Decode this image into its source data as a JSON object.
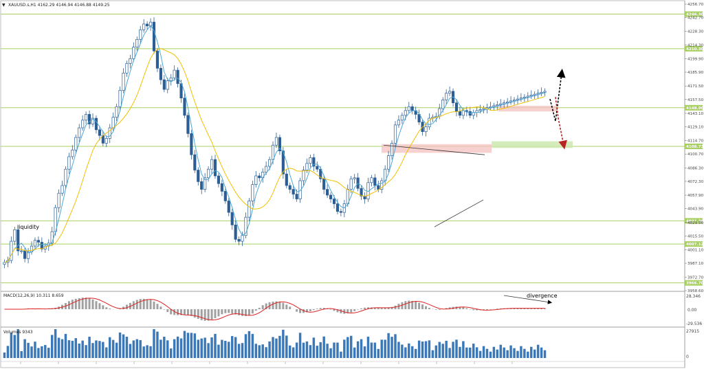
{
  "chart_data": {
    "type": "candlestick",
    "symbol_header": "XAUUSD.s,H1  4162.29 4146.94 4146.88 4149.25",
    "price_axis": {
      "ylim": [
        3958.6,
        4256.7
      ],
      "ticks": [
        "4256.70",
        "4242.70",
        "4228.30",
        "4214.30",
        "4199.90",
        "4185.90",
        "4171.50",
        "4157.50",
        "4143.10",
        "4129.10",
        "4114.70",
        "4100.70",
        "4086.30",
        "4072.30",
        "4057.90",
        "4043.90",
        "4029.50",
        "4015.50",
        "4001.10",
        "3987.10",
        "3972.70",
        "3958.60"
      ]
    },
    "levels": [
      {
        "value": 4246.3,
        "label": "4246.30"
      },
      {
        "value": 4210.3,
        "label": "4210.30"
      },
      {
        "value": 4148.9,
        "label": "4148.90"
      },
      {
        "value": 4108.73,
        "label": "4108.73"
      },
      {
        "value": 4031.26,
        "label": "4031.26"
      },
      {
        "value": 4007.12,
        "label": "4007.12"
      },
      {
        "value": 3966.7,
        "label": "3966.70"
      }
    ],
    "series": [
      {
        "kind": "close",
        "x": [
          0,
          5,
          10,
          15,
          20,
          25,
          30,
          35,
          40,
          45,
          50,
          55,
          60,
          65,
          70,
          75,
          80,
          85,
          90,
          95,
          100,
          105,
          110,
          115,
          120,
          125,
          130,
          135,
          140,
          145,
          150,
          155,
          160,
          165,
          170,
          175,
          180,
          185,
          190,
          195,
          200,
          205,
          210,
          215,
          220,
          225,
          230,
          235,
          240,
          245,
          250,
          255,
          260,
          265,
          270,
          275,
          280,
          285,
          290,
          295,
          300,
          305,
          310,
          315,
          320,
          325,
          330,
          335,
          340,
          345,
          350,
          355,
          360,
          365,
          370,
          375,
          380,
          385,
          390,
          395,
          400,
          405,
          410,
          415,
          420,
          425,
          430,
          435,
          440,
          445,
          450,
          455,
          460,
          465,
          470,
          475,
          480,
          485,
          490,
          495,
          500,
          505,
          510,
          515,
          520,
          525,
          530,
          535,
          540,
          545,
          550,
          555,
          560,
          565,
          570,
          575,
          580,
          585,
          590,
          595,
          600,
          605,
          610,
          615,
          620,
          625,
          630,
          635,
          640,
          645,
          650,
          655,
          660,
          665,
          670,
          675,
          680,
          685,
          690,
          695,
          700,
          705,
          710,
          715,
          720,
          725,
          730,
          735,
          740,
          745,
          750,
          755,
          760,
          765,
          770,
          775,
          780,
          785,
          790,
          795
        ],
        "y": [
          3988,
          3990,
          4010,
          4022,
          4000,
          4000,
          3992,
          3999,
          4005,
          4011,
          4009,
          4002,
          4005,
          4008,
          4020,
          4045,
          4060,
          4068,
          4085,
          4098,
          4105,
          4118,
          4128,
          4136,
          4142,
          4132,
          4138,
          4126,
          4120,
          4112,
          4117,
          4128,
          4139,
          4150,
          4167,
          4185,
          4195,
          4200,
          4212,
          4220,
          4230,
          4236,
          4234,
          4238,
          4208,
          4190,
          4178,
          4168,
          4177,
          4180,
          4188,
          4174,
          4159,
          4141,
          4122,
          4100,
          4084,
          4072,
          4064,
          4076,
          4085,
          4095,
          4078,
          4070,
          4062,
          4052,
          4040,
          4027,
          4012,
          4010,
          4016,
          4035,
          4052,
          4069,
          4078,
          4076,
          4082,
          4088,
          4095,
          4110,
          4118,
          4104,
          4080,
          4068,
          4064,
          4059,
          4054,
          4073,
          4084,
          4091,
          4097,
          4088,
          4085,
          4075,
          4064,
          4058,
          4054,
          4049,
          4041,
          4040,
          4049,
          4064,
          4075,
          4076,
          4065,
          4057,
          4054,
          4071,
          4076,
          4068,
          4064,
          4073,
          4085,
          4099,
          4112,
          4131,
          4136,
          4141,
          4146,
          4150,
          4146,
          4142,
          4134,
          4124,
          4129,
          4138,
          4139,
          4140,
          4148,
          4157,
          4164,
          4166,
          4154,
          4145,
          4141,
          4146,
          4145,
          4141,
          4144,
          4146,
          4147,
          4148,
          4149,
          4150,
          4151,
          4152,
          4153,
          4154,
          4155,
          4156,
          4157,
          4158,
          4159,
          4160,
          4161,
          4162,
          4163,
          4164,
          4165,
          4166
        ]
      },
      {
        "kind": "ma_fast",
        "name": "",
        "color": "#4aa8d8"
      },
      {
        "kind": "ma_slow",
        "name": "",
        "color": "#f0c000"
      }
    ],
    "annotations": [
      {
        "text": "liquidity"
      },
      {
        "text": "divergence"
      }
    ],
    "macd": {
      "label": "MACD(12,26,9) 10.311 8.659",
      "ticks": [
        "28.346",
        "0.00",
        "-29.536"
      ]
    },
    "volumes": {
      "label": "Volumes 9343",
      "ticks": [
        "27915",
        "0"
      ]
    }
  }
}
